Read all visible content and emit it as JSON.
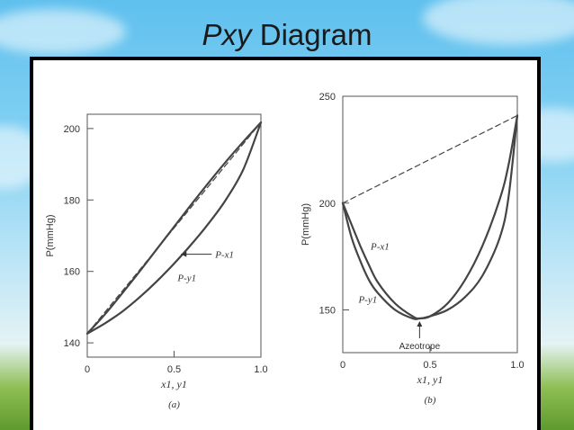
{
  "slide": {
    "title_italic": "Pxy",
    "title_rest": "Diagram"
  },
  "chart_data": [
    {
      "type": "line",
      "panel_label": "(a)",
      "xlabel": "x1, y1",
      "ylabel": "P(mmHg)",
      "xlim": [
        0,
        1.0
      ],
      "ylim": [
        136,
        204
      ],
      "x_ticks": [
        "0",
        "0.5",
        "1.0"
      ],
      "y_ticks": [
        "140",
        "160",
        "180",
        "200"
      ],
      "x_tick_values": [
        0,
        0.5,
        1.0
      ],
      "y_tick_values": [
        140,
        160,
        180,
        200
      ],
      "grid": false,
      "series": [
        {
          "name": "P-x1",
          "style": "solid",
          "x": [
            0,
            0.1,
            0.2,
            0.3,
            0.4,
            0.5,
            0.6,
            0.7,
            0.8,
            0.9,
            1.0
          ],
          "y": [
            142.6,
            147.9,
            153.8,
            159.9,
            166.2,
            172.5,
            178.8,
            184.9,
            190.8,
            196.4,
            201.7
          ]
        },
        {
          "name": "P-y1",
          "style": "solid",
          "x": [
            0,
            0.1,
            0.2,
            0.3,
            0.4,
            0.5,
            0.6,
            0.7,
            0.8,
            0.9,
            1.0
          ],
          "y": [
            142.6,
            145.4,
            148.7,
            152.7,
            157.2,
            162.2,
            167.6,
            173.5,
            180.2,
            188.7,
            201.7
          ]
        },
        {
          "name": "",
          "style": "dashed",
          "x": [
            0,
            1.0
          ],
          "y": [
            142.6,
            201.7
          ]
        }
      ],
      "annotations": [
        {
          "text": "P-x1",
          "x": 0.53,
          "y": 164.8,
          "arrow": true
        },
        {
          "text": "P-y1",
          "x": 0.52,
          "y": 158.3,
          "arrow": false
        }
      ]
    },
    {
      "type": "line",
      "panel_label": "(b)",
      "xlabel": "x1, y1",
      "ylabel": "P(mmHg)",
      "xlim": [
        0,
        1.0
      ],
      "ylim": [
        130,
        250
      ],
      "x_ticks": [
        "0",
        "0.5",
        "1.0"
      ],
      "y_ticks": [
        "150",
        "200",
        "250"
      ],
      "x_tick_values": [
        0,
        0.5,
        1.0
      ],
      "y_tick_values": [
        150,
        200,
        250
      ],
      "grid": false,
      "series": [
        {
          "name": "P-x1",
          "style": "solid",
          "x": [
            0,
            0.05,
            0.1,
            0.15,
            0.2,
            0.3,
            0.4,
            0.44,
            0.5,
            0.6,
            0.7,
            0.8,
            0.9,
            0.95,
            1.0
          ],
          "y": [
            200,
            184,
            173,
            164,
            158,
            150,
            146,
            146,
            147,
            153,
            164,
            180,
            202,
            218,
            241
          ]
        },
        {
          "name": "P-y1",
          "style": "solid",
          "x": [
            0,
            0.05,
            0.1,
            0.15,
            0.2,
            0.3,
            0.4,
            0.44,
            0.5,
            0.6,
            0.7,
            0.8,
            0.9,
            0.95,
            1.0
          ],
          "y": [
            200,
            190,
            180,
            171,
            163,
            153,
            147,
            146,
            147,
            150,
            156,
            166,
            184,
            203,
            241
          ]
        },
        {
          "name": "",
          "style": "dashed",
          "x": [
            0,
            1.0
          ],
          "y": [
            200,
            241
          ]
        }
      ],
      "annotations": [
        {
          "text": "P-x1",
          "x": 0.16,
          "y": 180,
          "arrow": false
        },
        {
          "text": "P-y1",
          "x": 0.09,
          "y": 155,
          "arrow": false
        },
        {
          "text": "Azeotrope",
          "x": 0.44,
          "y": 146,
          "arrow": true
        }
      ]
    }
  ]
}
